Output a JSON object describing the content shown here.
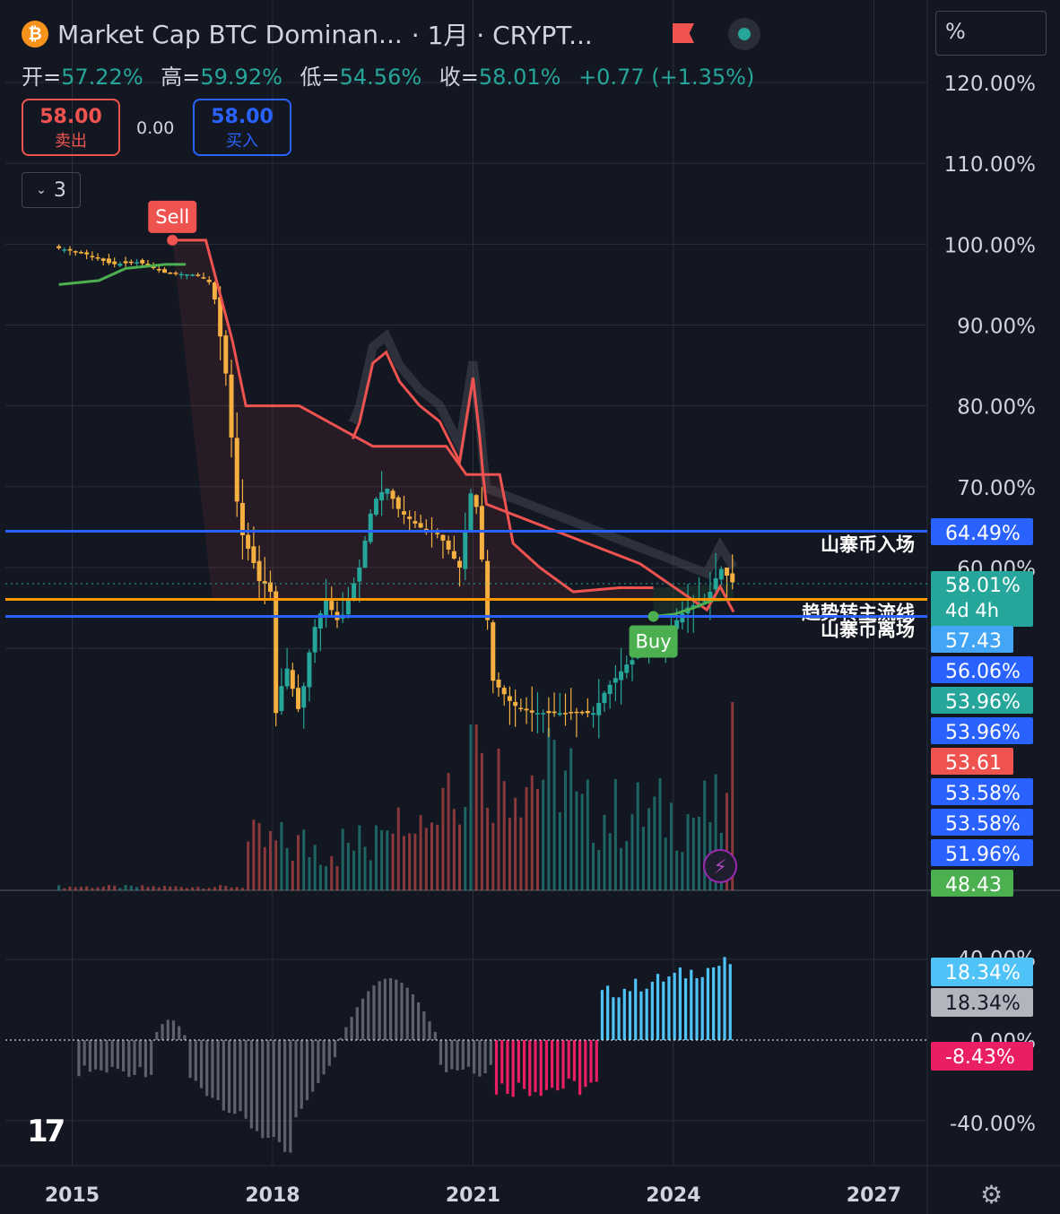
{
  "header": {
    "coin_icon_glyph": "₿",
    "title": "Market Cap BTC Dominan...",
    "interval": "· 1月 · CRYPT...",
    "ohlc": [
      {
        "label": "开=",
        "value": "57.22%"
      },
      {
        "label": "高=",
        "value": "59.92%"
      },
      {
        "label": "低=",
        "value": "54.56%"
      },
      {
        "label": "收=",
        "value": "58.01%"
      },
      {
        "label": "",
        "value": "+0.77 (+1.35%)"
      }
    ]
  },
  "trade": {
    "sell_price": "58.00",
    "sell_label": "卖出",
    "spread": "0.00",
    "buy_price": "58.00",
    "buy_label": "买入"
  },
  "indicators": {
    "count": "3"
  },
  "scale_button": "%",
  "logo_text": "17",
  "icons": {
    "collapse": "chevron-down-icon",
    "flag": "flag-icon",
    "status": "status-dot-icon",
    "lightning": "lightning-icon",
    "settings": "settings-icon",
    "logo": "tradingview-logo"
  },
  "colors": {
    "up": "#26a69a",
    "down": "#ef5350",
    "candle": "#f5b041",
    "blue_line": "#2962ff",
    "orange_line": "#ff9800",
    "trail_red": "#ef5350",
    "trail_green": "#4caf50",
    "hist_up": "#4fc3f7",
    "hist_down": "#e91e63",
    "hist_neutral": "#787b86"
  },
  "chart_data": {
    "type": "candlestick",
    "x_ticks": [
      "2015",
      "2018",
      "2021",
      "2024",
      "2027"
    ],
    "y_ticks": [
      "120.00%",
      "110.00%",
      "100.00%",
      "90.00%",
      "80.00%",
      "70.00%",
      "60.00%"
    ],
    "ylim": [
      47,
      124
    ],
    "xlim": [
      2014.0,
      2027.8
    ],
    "close_points": [
      [
        2014.8,
        99.5
      ],
      [
        2015.2,
        98.8
      ],
      [
        2015.6,
        97.5
      ],
      [
        2016.0,
        97.8
      ],
      [
        2016.4,
        96.4
      ],
      [
        2016.9,
        96.2
      ],
      [
        2017.1,
        95.0
      ],
      [
        2017.3,
        84
      ],
      [
        2017.5,
        65
      ],
      [
        2017.7,
        61
      ],
      [
        2017.85,
        57
      ],
      [
        2017.95,
        60
      ],
      [
        2018.05,
        42
      ],
      [
        2018.2,
        48
      ],
      [
        2018.4,
        42
      ],
      [
        2018.6,
        52
      ],
      [
        2018.8,
        56
      ],
      [
        2019.0,
        53
      ],
      [
        2019.3,
        60
      ],
      [
        2019.5,
        68
      ],
      [
        2019.7,
        70
      ],
      [
        2019.9,
        67
      ],
      [
        2020.2,
        65
      ],
      [
        2020.5,
        64
      ],
      [
        2020.8,
        60
      ],
      [
        2021.0,
        71
      ],
      [
        2021.1,
        64
      ],
      [
        2021.3,
        46
      ],
      [
        2021.6,
        43
      ],
      [
        2021.9,
        42
      ],
      [
        2022.2,
        42
      ],
      [
        2022.5,
        42
      ],
      [
        2022.8,
        42
      ],
      [
        2023.0,
        45
      ],
      [
        2023.3,
        48
      ],
      [
        2023.6,
        50
      ],
      [
        2023.9,
        52
      ],
      [
        2024.2,
        55
      ],
      [
        2024.5,
        56
      ],
      [
        2024.7,
        60
      ],
      [
        2024.9,
        58
      ]
    ],
    "horizontal_lines": [
      {
        "value": 64.49,
        "label": "山寨币入场",
        "color": "#2962ff"
      },
      {
        "value": 56.06,
        "label": "趋势转主流线",
        "color": "#ff9800"
      },
      {
        "value": 53.96,
        "label": "山寨币离场",
        "color": "#2962ff"
      }
    ],
    "signals": [
      {
        "type": "Sell",
        "x": 2016.5,
        "y": 100.5
      },
      {
        "type": "Buy",
        "x": 2023.7,
        "y": 53.96
      }
    ],
    "price_labels": [
      {
        "value": "64.49%",
        "color": "#2962ff"
      },
      {
        "value": "58.01%",
        "sub": "4d 4h",
        "color": "#26a69a"
      },
      {
        "value": "57.43",
        "color": "#42a5f5"
      },
      {
        "value": "56.06%",
        "color": "#2962ff"
      },
      {
        "value": "53.96%",
        "color": "#26a69a"
      },
      {
        "value": "53.96%",
        "color": "#2962ff"
      },
      {
        "value": "53.61",
        "color": "#ef5350"
      },
      {
        "value": "53.58%",
        "color": "#2962ff"
      },
      {
        "value": "53.58%",
        "color": "#2962ff"
      },
      {
        "value": "51.96%",
        "color": "#2962ff"
      },
      {
        "value": "48.43",
        "color": "#4caf50"
      }
    ],
    "oscillator": {
      "ticks": [
        "40.00%",
        "0.00%",
        "-40.00%"
      ],
      "labels": [
        {
          "value": "18.34%",
          "color": "#4fc3f7"
        },
        {
          "value": "18.34%",
          "color": "#b2b5be"
        },
        {
          "value": "-8.43%",
          "color": "#e91e63"
        }
      ],
      "ylim": [
        -55,
        50
      ]
    }
  }
}
